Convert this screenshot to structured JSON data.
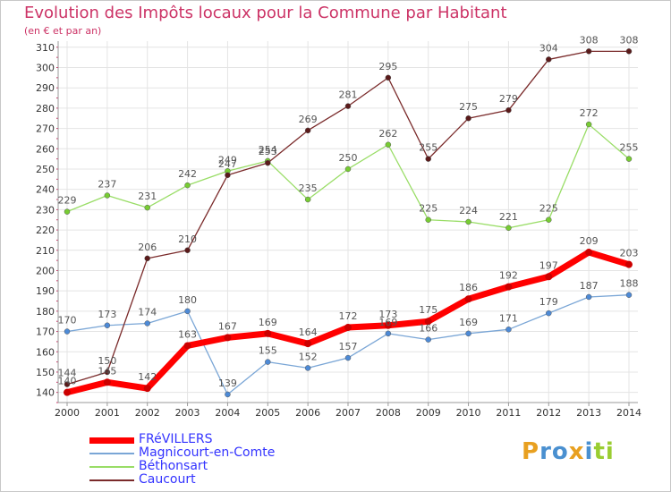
{
  "header": {
    "title": "Evolution des Impôts locaux pour la Commune par Habitant",
    "subtitle": "(en € et par an)"
  },
  "logo": {
    "text": "Proxiti",
    "icon": "proxiti-logo"
  },
  "colors": {
    "title": "#cc3366",
    "grid": "#e4e4e4",
    "axis_text": "#333333",
    "label_text": "#555555"
  },
  "chart_data": {
    "type": "line",
    "title": "Evolution des Impôts locaux pour la Commune par Habitant",
    "subtitle": "(en € et par an)",
    "categories": [
      "2000",
      "2001",
      "2002",
      "2003",
      "2004",
      "2005",
      "2006",
      "2007",
      "2008",
      "2009",
      "2010",
      "2011",
      "2012",
      "2013",
      "2014"
    ],
    "ylim": [
      135,
      313
    ],
    "yticks": [
      140,
      150,
      160,
      170,
      180,
      190,
      200,
      210,
      220,
      230,
      240,
      250,
      260,
      270,
      280,
      290,
      300,
      310
    ],
    "grid": true,
    "legend_position": "bottom-left",
    "series": [
      {
        "name": "FRéVILLERS",
        "color": "#ff0000",
        "legend_color": "#3333ff",
        "dot": "#cc0000",
        "width": 7,
        "values": [
          140,
          145,
          142,
          163,
          167,
          169,
          164,
          172,
          173,
          175,
          186,
          192,
          197,
          209,
          203
        ]
      },
      {
        "name": "Magnicourt-en-Comte",
        "color": "#7aa6d6",
        "legend_color": "#3333ff",
        "dot": "#4d8ad6",
        "width": 1.3,
        "values": [
          170,
          173,
          174,
          180,
          139,
          155,
          152,
          157,
          169,
          166,
          169,
          171,
          179,
          187,
          188
        ]
      },
      {
        "name": "Béthonsart",
        "color": "#99dd66",
        "legend_color": "#3333ff",
        "dot": "#77cc33",
        "width": 1.3,
        "values": [
          229,
          237,
          231,
          242,
          249,
          254,
          235,
          250,
          262,
          225,
          224,
          221,
          225,
          272,
          255
        ]
      },
      {
        "name": "Caucourt",
        "color": "#7a2a2a",
        "legend_color": "#3333ff",
        "dot": "#5a1a1a",
        "width": 1.3,
        "values": [
          144,
          150,
          206,
          210,
          247,
          253,
          269,
          281,
          295,
          255,
          275,
          279,
          304,
          308,
          308
        ]
      }
    ]
  }
}
